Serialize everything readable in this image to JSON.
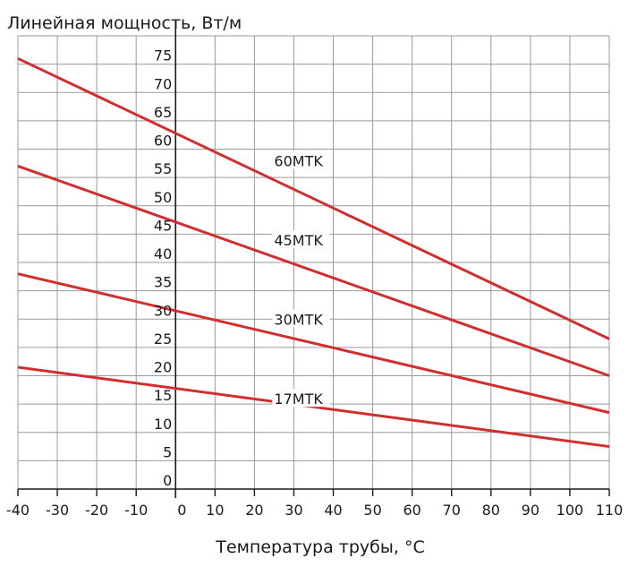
{
  "chart_data": {
    "type": "line",
    "ylabel": "Линейная мощность, Вт/м",
    "xlabel": "Температура трубы, °C",
    "xlim": [
      -40,
      110
    ],
    "ylim": [
      0,
      80
    ],
    "x_ticks": [
      -40,
      -30,
      -20,
      -10,
      0,
      10,
      20,
      30,
      40,
      50,
      60,
      70,
      80,
      90,
      100,
      110
    ],
    "y_ticks": [
      0,
      5,
      10,
      15,
      20,
      25,
      30,
      35,
      40,
      45,
      50,
      55,
      60,
      65,
      70,
      75
    ],
    "grid": true,
    "line_color": "#d12f2f",
    "series": [
      {
        "name": "60MTK",
        "x": [
          -40,
          110
        ],
        "y": [
          76,
          26.5
        ],
        "label_at": [
          25,
          57
        ]
      },
      {
        "name": "45MTK",
        "x": [
          -40,
          110
        ],
        "y": [
          57,
          20
        ],
        "label_at": [
          25,
          43
        ]
      },
      {
        "name": "30MTK",
        "x": [
          -40,
          110
        ],
        "y": [
          38,
          13.5
        ],
        "label_at": [
          25,
          29
        ]
      },
      {
        "name": "17MTK",
        "x": [
          -40,
          110
        ],
        "y": [
          21.5,
          7.5
        ],
        "label_at": [
          25,
          15
        ]
      }
    ]
  }
}
